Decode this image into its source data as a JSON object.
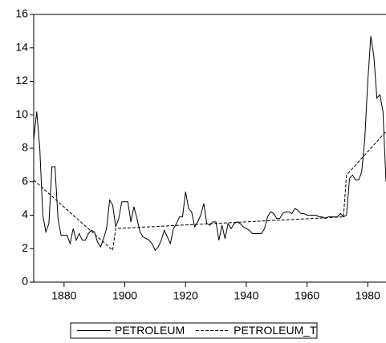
{
  "chart_data": {
    "type": "line",
    "x": [
      1870,
      1871,
      1872,
      1873,
      1874,
      1875,
      1876,
      1877,
      1878,
      1879,
      1880,
      1881,
      1882,
      1883,
      1884,
      1885,
      1886,
      1887,
      1888,
      1889,
      1890,
      1891,
      1892,
      1893,
      1894,
      1895,
      1896,
      1897,
      1898,
      1899,
      1900,
      1901,
      1902,
      1903,
      1904,
      1905,
      1906,
      1907,
      1908,
      1909,
      1910,
      1911,
      1912,
      1913,
      1914,
      1915,
      1916,
      1917,
      1918,
      1919,
      1920,
      1921,
      1922,
      1923,
      1924,
      1925,
      1926,
      1927,
      1928,
      1929,
      1930,
      1931,
      1932,
      1933,
      1934,
      1935,
      1936,
      1937,
      1938,
      1939,
      1940,
      1941,
      1942,
      1943,
      1944,
      1945,
      1946,
      1947,
      1948,
      1949,
      1950,
      1951,
      1952,
      1953,
      1954,
      1955,
      1956,
      1957,
      1958,
      1959,
      1960,
      1961,
      1962,
      1963,
      1964,
      1965,
      1966,
      1967,
      1968,
      1969,
      1970,
      1971,
      1972,
      1973,
      1974,
      1975,
      1976,
      1977,
      1978,
      1979,
      1980,
      1981,
      1982,
      1983,
      1984,
      1985,
      1986
    ],
    "series": [
      {
        "name": "PETROLEUM",
        "color": "#000000",
        "dash": "solid",
        "values": [
          8.5,
          10.2,
          8.0,
          4.0,
          3.0,
          3.5,
          6.9,
          6.9,
          3.8,
          2.8,
          2.8,
          2.8,
          2.3,
          3.2,
          2.5,
          2.9,
          2.5,
          2.5,
          2.9,
          3.1,
          3.0,
          2.4,
          2.1,
          2.6,
          3.2,
          4.9,
          4.6,
          3.3,
          3.8,
          4.8,
          4.8,
          4.8,
          3.6,
          4.5,
          3.8,
          3.0,
          2.7,
          2.6,
          2.5,
          2.3,
          1.9,
          2.1,
          2.5,
          3.1,
          2.7,
          2.3,
          3.2,
          3.5,
          3.9,
          3.9,
          5.4,
          4.4,
          4.2,
          3.3,
          3.6,
          4.0,
          4.7,
          3.5,
          3.4,
          3.6,
          3.6,
          2.5,
          3.4,
          2.6,
          3.5,
          3.2,
          3.5,
          3.6,
          3.5,
          3.3,
          3.2,
          3.1,
          2.9,
          2.9,
          2.9,
          2.9,
          3.2,
          3.9,
          4.2,
          4.1,
          3.8,
          3.8,
          4.1,
          4.2,
          4.2,
          4.1,
          4.4,
          4.3,
          4.1,
          4.1,
          4.0,
          4.0,
          4.0,
          4.0,
          3.9,
          3.9,
          3.8,
          3.9,
          3.9,
          3.9,
          3.9,
          4.1,
          3.9,
          4.0,
          6.2,
          6.4,
          6.1,
          6.1,
          6.6,
          8.5,
          12.0,
          14.7,
          13.5,
          11.0,
          11.2,
          10.2,
          6.0
        ]
      },
      {
        "name": "PETROLEUM_T",
        "color": "#000000",
        "dash": "dashed",
        "x": [
          1870,
          1896,
          1897,
          1972,
          1973,
          1986
        ],
        "values": [
          6.1,
          1.9,
          3.2,
          3.9,
          6.4,
          9.0
        ]
      }
    ],
    "xlim": [
      1870,
      1986
    ],
    "xticks": [
      1880,
      1900,
      1920,
      1940,
      1960,
      1980
    ],
    "ylim": [
      0,
      16
    ],
    "yticks": [
      0,
      2,
      4,
      6,
      8,
      10,
      12,
      14,
      16
    ],
    "grid": false,
    "legend": "bottom"
  }
}
